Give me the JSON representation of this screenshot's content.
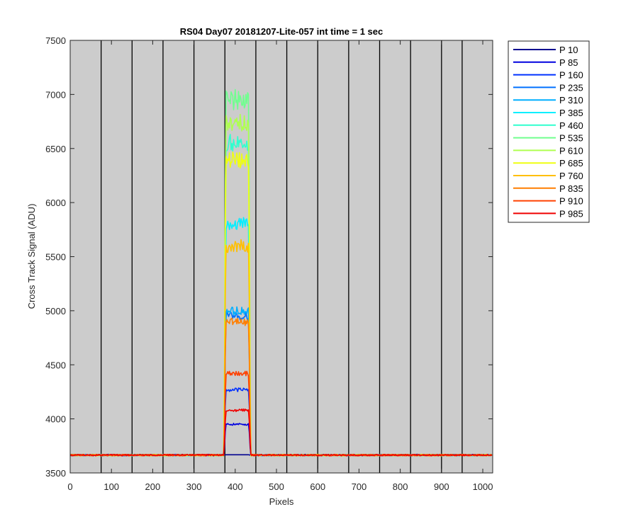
{
  "chart_data": {
    "type": "line",
    "title": "RS04 Day07 20181207-Lite-057 int time = 1 sec",
    "xlabel": "Pixels",
    "ylabel": "Cross Track Signal (ADU)",
    "xlim": [
      0,
      1024
    ],
    "ylim": [
      3500,
      7500
    ],
    "xticks": [
      0,
      100,
      200,
      300,
      400,
      500,
      600,
      700,
      800,
      900,
      1000
    ],
    "yticks": [
      3500,
      4000,
      4500,
      5000,
      5500,
      6000,
      6500,
      7000,
      7500
    ],
    "grid": false,
    "background": "#cccccc",
    "vertical_lines": [
      75,
      150,
      225,
      300,
      375,
      450,
      525,
      600,
      675,
      750,
      825,
      900,
      950
    ],
    "baseline": 3665,
    "plateau_x": [
      375,
      435
    ],
    "legend_position": "outside-right",
    "series": [
      {
        "name": "P 10",
        "color": "#00008f",
        "plateau": 3668
      },
      {
        "name": "P 85",
        "color": "#0000df",
        "plateau": 3950
      },
      {
        "name": "P 160",
        "color": "#0030ff",
        "plateau": 4270
      },
      {
        "name": "P 235",
        "color": "#0070ff",
        "plateau": 4950
      },
      {
        "name": "P 310",
        "color": "#00afff",
        "plateau": 5000
      },
      {
        "name": "P 385",
        "color": "#00efff",
        "plateau": 5800
      },
      {
        "name": "P 460",
        "color": "#30ffcf",
        "plateau": 6550
      },
      {
        "name": "P 535",
        "color": "#70ff8f",
        "plateau": 6950
      },
      {
        "name": "P 610",
        "color": "#afff50",
        "plateau": 6750
      },
      {
        "name": "P 685",
        "color": "#efff10",
        "plateau": 6400
      },
      {
        "name": "P 760",
        "color": "#ffbf00",
        "plateau": 5600
      },
      {
        "name": "P 835",
        "color": "#ff7f00",
        "plateau": 4900
      },
      {
        "name": "P 910",
        "color": "#ff4000",
        "plateau": 4420
      },
      {
        "name": "P 985",
        "color": "#ef0000",
        "plateau": 4080
      }
    ]
  }
}
